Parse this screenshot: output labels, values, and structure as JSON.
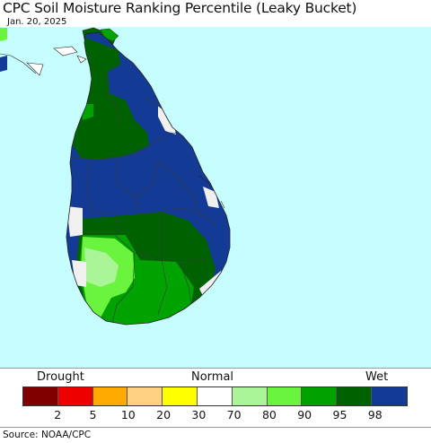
{
  "title": "CPC Soil Moisture Ranking Percentile (Leaky Bucket)",
  "date": "Jan. 20, 2025",
  "legend": {
    "left_label": "Drought",
    "center_label": "Normal",
    "right_label": "Wet",
    "colors": [
      "#800000",
      "#ee0000",
      "#ffaa00",
      "#fdd17f",
      "#ffff00",
      "#ffffff",
      "#aaf597",
      "#6af43e",
      "#00a200",
      "#006100",
      "#133a94"
    ],
    "ticks": [
      "2",
      "5",
      "10",
      "20",
      "30",
      "70",
      "80",
      "90",
      "95",
      "98"
    ]
  },
  "source": "Source: NOAA/CPC",
  "map": {
    "ocean_color": "#c6fdff",
    "categories": {
      "wet_98": "#133a94",
      "wet_95": "#006100",
      "wet_90": "#00a200",
      "wet_80": "#6af43e",
      "wet_70": "#aaf597",
      "normal": "#f0f0f0"
    }
  }
}
